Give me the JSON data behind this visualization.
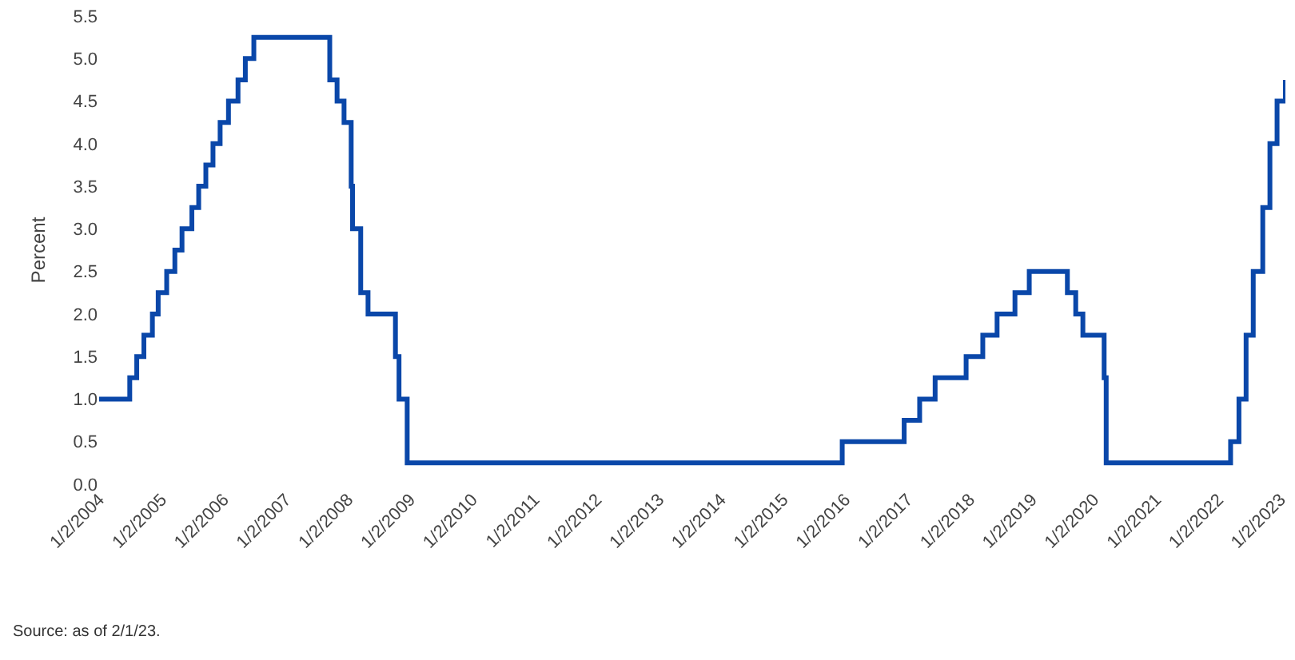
{
  "chart_data": {
    "type": "step",
    "ylabel": "Percent",
    "annotations": [
      "Source: as of 2/1/23."
    ],
    "x": [
      "2004-01-02",
      "2004-06-30",
      "2004-08-10",
      "2004-09-21",
      "2004-11-10",
      "2004-12-14",
      "2005-02-02",
      "2005-03-22",
      "2005-05-03",
      "2005-06-30",
      "2005-08-09",
      "2005-09-20",
      "2005-11-01",
      "2005-12-13",
      "2006-01-31",
      "2006-03-28",
      "2006-05-10",
      "2006-06-29",
      "2007-09-18",
      "2007-10-31",
      "2007-12-11",
      "2008-01-22",
      "2008-01-30",
      "2008-03-18",
      "2008-04-30",
      "2008-10-08",
      "2008-10-29",
      "2008-12-16",
      "2015-12-16",
      "2016-12-14",
      "2017-03-15",
      "2017-06-14",
      "2017-12-13",
      "2018-03-21",
      "2018-06-13",
      "2018-09-26",
      "2018-12-19",
      "2019-07-31",
      "2019-09-18",
      "2019-10-30",
      "2020-03-03",
      "2020-03-15",
      "2022-03-16",
      "2022-05-04",
      "2022-06-15",
      "2022-07-27",
      "2022-09-21",
      "2022-11-02",
      "2022-12-14",
      "2023-02-01"
    ],
    "series": [
      {
        "color": "#0a47a9",
        "values": [
          1.0,
          1.25,
          1.5,
          1.75,
          2.0,
          2.25,
          2.5,
          2.75,
          3.0,
          3.25,
          3.5,
          3.75,
          4.0,
          4.25,
          4.5,
          4.75,
          5.0,
          5.25,
          4.75,
          4.5,
          4.25,
          3.5,
          3.0,
          2.25,
          2.0,
          1.5,
          1.0,
          0.25,
          0.5,
          0.75,
          1.0,
          1.25,
          1.5,
          1.75,
          2.0,
          2.25,
          2.5,
          2.25,
          2.0,
          1.75,
          1.25,
          0.25,
          0.5,
          1.0,
          1.75,
          2.5,
          3.25,
          4.0,
          4.5,
          4.75
        ]
      }
    ],
    "xlim": [
      "2004-01-02",
      "2023-02-01"
    ],
    "xticks": [
      {
        "value": "2004-01-02",
        "label": "1/2/2004"
      },
      {
        "value": "2005-01-02",
        "label": "1/2/2005"
      },
      {
        "value": "2006-01-02",
        "label": "1/2/2006"
      },
      {
        "value": "2007-01-02",
        "label": "1/2/2007"
      },
      {
        "value": "2008-01-02",
        "label": "1/2/2008"
      },
      {
        "value": "2009-01-02",
        "label": "1/2/2009"
      },
      {
        "value": "2010-01-02",
        "label": "1/2/2010"
      },
      {
        "value": "2011-01-02",
        "label": "1/2/2011"
      },
      {
        "value": "2012-01-02",
        "label": "1/2/2012"
      },
      {
        "value": "2013-01-02",
        "label": "1/2/2013"
      },
      {
        "value": "2014-01-02",
        "label": "1/2/2014"
      },
      {
        "value": "2015-01-02",
        "label": "1/2/2015"
      },
      {
        "value": "2016-01-02",
        "label": "1/2/2016"
      },
      {
        "value": "2017-01-02",
        "label": "1/2/2017"
      },
      {
        "value": "2018-01-02",
        "label": "1/2/2018"
      },
      {
        "value": "2019-01-02",
        "label": "1/2/2019"
      },
      {
        "value": "2020-01-02",
        "label": "1/2/2020"
      },
      {
        "value": "2021-01-02",
        "label": "1/2/2021"
      },
      {
        "value": "2022-01-02",
        "label": "1/2/2022"
      },
      {
        "value": "2023-01-02",
        "label": "1/2/2023"
      }
    ],
    "ylim": [
      0,
      5.5
    ],
    "yticks": [
      {
        "value": 0,
        "label": "0.0"
      },
      {
        "value": 0.5,
        "label": "0.5"
      },
      {
        "value": 1,
        "label": "1.0"
      },
      {
        "value": 1.5,
        "label": "1.5"
      },
      {
        "value": 2,
        "label": "2.0"
      },
      {
        "value": 2.5,
        "label": "2.5"
      },
      {
        "value": 3,
        "label": "3.0"
      },
      {
        "value": 3.5,
        "label": "3.5"
      },
      {
        "value": 4,
        "label": "4.0"
      },
      {
        "value": 4.5,
        "label": "4.5"
      },
      {
        "value": 5,
        "label": "5.0"
      },
      {
        "value": 5.5,
        "label": "5.5"
      }
    ],
    "line_style": "solid"
  }
}
